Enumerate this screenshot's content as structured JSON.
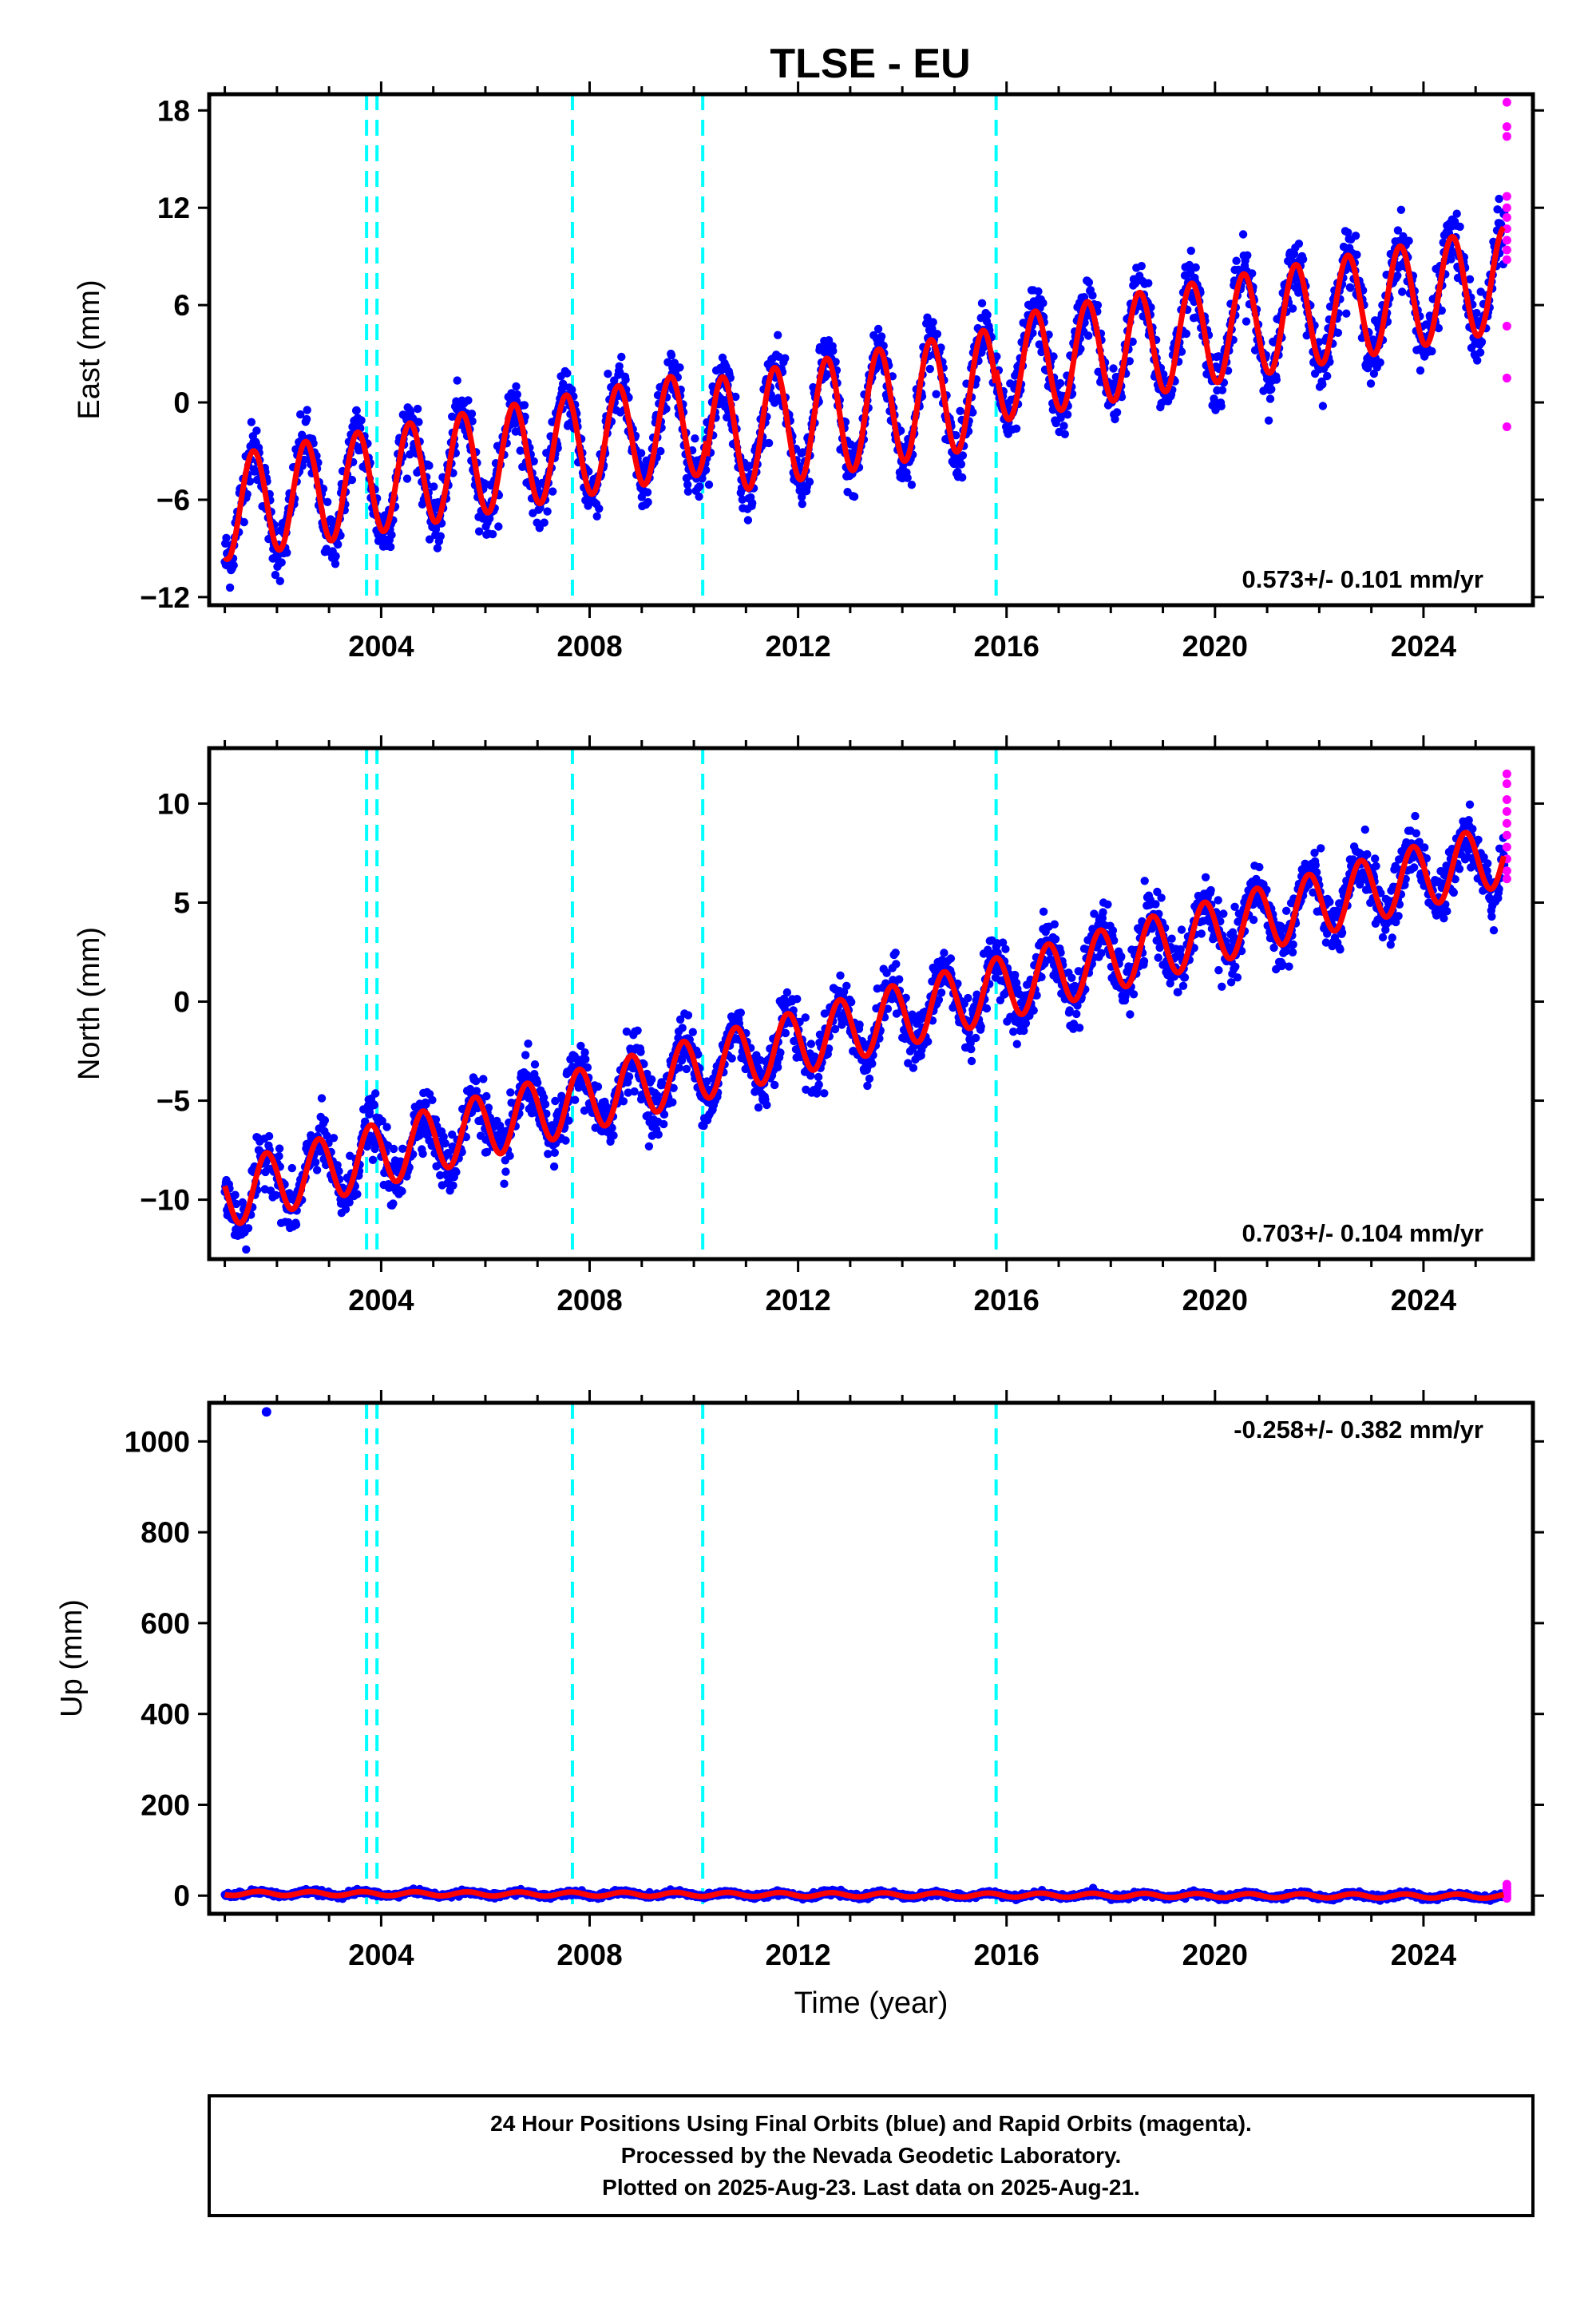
{
  "chart_data": [
    {
      "type": "scatter",
      "title": "TLSE - EU",
      "ylabel": "East (mm)",
      "xlabel": "",
      "xlim": [
        2000.7,
        2026.1
      ],
      "ylim": [
        -12.5,
        19.0
      ],
      "yticks": [
        -12,
        -6,
        0,
        6,
        12,
        18
      ],
      "ytick_labels": [
        "−12",
        "−6",
        "0",
        "6",
        "12",
        "18"
      ],
      "xticks": [
        2004,
        2008,
        2012,
        2016,
        2020,
        2024
      ],
      "xtick_labels": [
        "2004",
        "2008",
        "2012",
        "2016",
        "2020",
        "2024"
      ],
      "rate_label": "0.573+/- 0.101 mm/yr",
      "rate_position": "bottom-right",
      "grid": false,
      "breaks": [
        2003.72,
        2003.92,
        2007.67,
        2010.17,
        2015.8
      ],
      "series": [
        {
          "name": "Final Orbits",
          "color": "#0000ff",
          "model": {
            "segments": [
              {
                "start": 2001.0,
                "end": 2010.25,
                "anchor": 2001.0,
                "offset": -6.5,
                "rate": 0.573,
                "amplitude": 3.2,
                "phase": 0.3
              },
              {
                "start": 2010.25,
                "end": 2015.8,
                "anchor": 2010.25,
                "offset": -2.2,
                "rate": 0.573,
                "amplitude": 3.6,
                "phase": 0.3
              },
              {
                "start": 2015.8,
                "end": 2025.55,
                "anchor": 2015.8,
                "offset": 2.0,
                "rate": 0.573,
                "amplitude": 3.2,
                "phase": 0.3
              }
            ]
          },
          "scatter": 1.7
        },
        {
          "name": "Rapid Orbits",
          "color": "#ff00ff",
          "points": [
            [
              2025.6,
              18.5
            ],
            [
              2025.6,
              17.0
            ],
            [
              2025.6,
              16.4
            ],
            [
              2025.6,
              12.7
            ],
            [
              2025.6,
              12.0
            ],
            [
              2025.6,
              11.4
            ],
            [
              2025.6,
              10.7
            ],
            [
              2025.6,
              10.0
            ],
            [
              2025.6,
              9.4
            ],
            [
              2025.6,
              8.8
            ],
            [
              2025.6,
              4.7
            ],
            [
              2025.6,
              1.5
            ],
            [
              2025.6,
              -1.5
            ]
          ]
        },
        {
          "name": "Model",
          "color": "#ff0000",
          "model": {
            "segments": [
              {
                "start": 2001.0,
                "end": 2010.25,
                "anchor": 2001.0,
                "offset": -6.5,
                "rate": 0.573,
                "amplitude": 3.2,
                "phase": 0.3
              },
              {
                "start": 2010.25,
                "end": 2015.8,
                "anchor": 2010.25,
                "offset": -2.2,
                "rate": 0.573,
                "amplitude": 3.6,
                "phase": 0.3
              },
              {
                "start": 2015.8,
                "end": 2025.55,
                "anchor": 2015.8,
                "offset": 2.0,
                "rate": 0.573,
                "amplitude": 3.2,
                "phase": 0.3
              }
            ]
          }
        }
      ]
    },
    {
      "type": "scatter",
      "title": "",
      "ylabel": "North (mm)",
      "xlabel": "",
      "xlim": [
        2000.7,
        2026.1
      ],
      "ylim": [
        -13.0,
        12.8
      ],
      "yticks": [
        -10,
        -5,
        0,
        5,
        10
      ],
      "ytick_labels": [
        "−10",
        "−5",
        "0",
        "5",
        "10"
      ],
      "xticks": [
        2004,
        2008,
        2012,
        2016,
        2020,
        2024
      ],
      "xtick_labels": [
        "2004",
        "2008",
        "2012",
        "2016",
        "2020",
        "2024"
      ],
      "rate_label": "0.703+/- 0.104 mm/yr",
      "rate_position": "bottom-right",
      "grid": false,
      "breaks": [
        2003.72,
        2003.92,
        2007.67,
        2010.17,
        2015.8
      ],
      "series": [
        {
          "name": "Final Orbits",
          "color": "#0000ff",
          "model": {
            "segments": [
              {
                "start": 2001.0,
                "end": 2025.55,
                "anchor": 2001.0,
                "offset": -9.8,
                "rate": 0.703,
                "amplitude": 1.6,
                "phase": 0.55
              }
            ]
          },
          "scatter": 1.3
        },
        {
          "name": "Rapid Orbits",
          "color": "#ff00ff",
          "points": [
            [
              2025.6,
              11.5
            ],
            [
              2025.6,
              11.0
            ],
            [
              2025.6,
              10.2
            ],
            [
              2025.6,
              9.6
            ],
            [
              2025.6,
              9.0
            ],
            [
              2025.6,
              8.4
            ],
            [
              2025.6,
              7.8
            ],
            [
              2025.6,
              7.2
            ],
            [
              2025.6,
              6.6
            ],
            [
              2025.6,
              6.2
            ]
          ]
        },
        {
          "name": "Model",
          "color": "#ff0000",
          "model": {
            "segments": [
              {
                "start": 2001.0,
                "end": 2025.55,
                "anchor": 2001.0,
                "offset": -9.8,
                "rate": 0.703,
                "amplitude": 1.6,
                "phase": 0.55
              }
            ]
          }
        }
      ]
    },
    {
      "type": "scatter",
      "title": "",
      "ylabel": "Up (mm)",
      "xlabel": "Time (year)",
      "xlim": [
        2000.7,
        2026.1
      ],
      "ylim": [
        -40,
        1085
      ],
      "yticks": [
        0,
        200,
        400,
        600,
        800,
        1000
      ],
      "ytick_labels": [
        "0",
        "200",
        "400",
        "600",
        "800",
        "1000"
      ],
      "xticks": [
        2004,
        2008,
        2012,
        2016,
        2020,
        2024
      ],
      "xtick_labels": [
        "2004",
        "2008",
        "2012",
        "2016",
        "2020",
        "2024"
      ],
      "rate_label": "-0.258+/- 0.382 mm/yr",
      "rate_position": "top-right",
      "grid": false,
      "breaks": [
        2003.72,
        2003.92,
        2007.67,
        2010.17,
        2015.8
      ],
      "series": [
        {
          "name": "Final Orbits",
          "color": "#0000ff",
          "model": {
            "segments": [
              {
                "start": 2001.0,
                "end": 2025.55,
                "anchor": 2001.0,
                "offset": 5.0,
                "rate": -0.258,
                "amplitude": 4.5,
                "phase": 0.4
              }
            ]
          },
          "scatter": 5.0,
          "outliers": [
            [
              2001.8,
              1065
            ]
          ]
        },
        {
          "name": "Rapid Orbits",
          "color": "#ff00ff",
          "points": [
            [
              2025.6,
              25
            ],
            [
              2025.6,
              18
            ],
            [
              2025.6,
              12
            ],
            [
              2025.6,
              6
            ],
            [
              2025.6,
              0
            ],
            [
              2025.6,
              -6
            ]
          ]
        },
        {
          "name": "Model",
          "color": "#ff0000",
          "model": {
            "segments": [
              {
                "start": 2001.0,
                "end": 2025.55,
                "anchor": 2001.0,
                "offset": 5.0,
                "rate": -0.258,
                "amplitude": 4.5,
                "phase": 0.4
              }
            ]
          }
        }
      ]
    }
  ],
  "footer": {
    "line1": "24 Hour Positions Using Final Orbits (blue) and Rapid Orbits (magenta).",
    "line2": "Processed by the Nevada Geodetic Laboratory.",
    "line3": "Plotted on 2025-Aug-23. Last data on 2025-Aug-21."
  },
  "colors": {
    "break_line": "#00ffff",
    "frame": "#000000"
  }
}
